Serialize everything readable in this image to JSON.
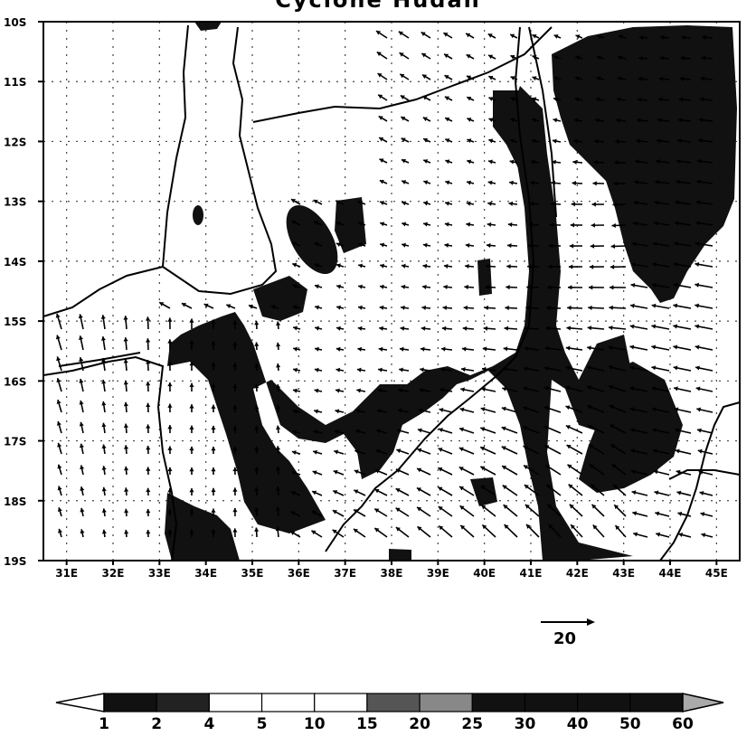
{
  "title": "Cyclone Hudah",
  "map": {
    "lat_labels": [
      "10S",
      "11S",
      "12S",
      "13S",
      "14S",
      "15S",
      "16S",
      "17S",
      "18S",
      "19S"
    ],
    "lon_labels": [
      "31E",
      "32E",
      "33E",
      "34E",
      "35E",
      "36E",
      "37E",
      "38E",
      "39E",
      "40E",
      "41E",
      "42E",
      "43E",
      "44E",
      "45E"
    ],
    "frame_color": "#000000",
    "shade_color": "#111111",
    "vector_color": "#000000"
  },
  "reference_vector": {
    "value": "20"
  },
  "colorbar": {
    "labels": [
      "1",
      "2",
      "4",
      "5",
      "10",
      "15",
      "20",
      "25",
      "30",
      "40",
      "50",
      "60"
    ],
    "colors": [
      "#ffffff",
      "#111111",
      "#222222",
      "#ffffff",
      "#ffffff",
      "#ffffff",
      "#555555",
      "#888888",
      "#111111",
      "#111111",
      "#111111",
      "#111111",
      "#aaaaaa"
    ]
  }
}
